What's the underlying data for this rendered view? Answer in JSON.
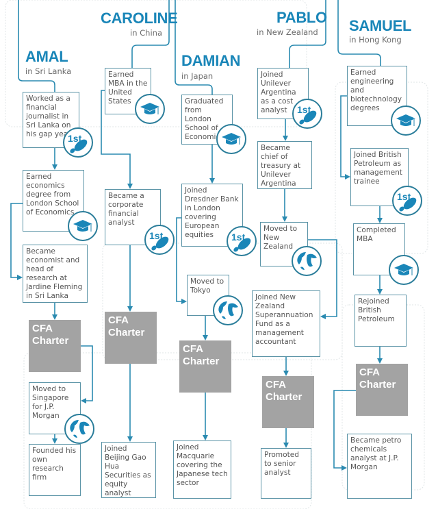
{
  "colors": {
    "accent": "#1a86b8",
    "line": "#2a8ab0",
    "box_border": "#5a93a6",
    "cfa_fill": "#a3a3a3"
  },
  "people": [
    {
      "name": "AMAL",
      "location": "in Sri Lanka",
      "steps": [
        {
          "text": "Worked as a financial journalist in Sri Lanka on his gap year",
          "icon": "first-step-shoe-icon"
        },
        {
          "text": "Earned economics degree from London School of Economics",
          "icon": "graduation-cap-icon"
        },
        {
          "text": "Became economist and head of research at Jardine Fleming in Sri Lanka",
          "icon": ""
        },
        {
          "text": "CFA Charter",
          "icon": "",
          "cfa": true
        },
        {
          "text": "Moved to Singapore for J.P. Morgan",
          "icon": "globe-icon"
        },
        {
          "text": "Founded his own research firm",
          "icon": ""
        }
      ]
    },
    {
      "name": "CAROLINE",
      "location": "in China",
      "steps": [
        {
          "text": "Earned MBA in the United States",
          "icon": "graduation-cap-icon"
        },
        {
          "text": "Became a corporate financial analyst",
          "icon": "first-step-shoe-icon"
        },
        {
          "text": "CFA Charter",
          "icon": "",
          "cfa": true
        },
        {
          "text": "Joined Beijing Gao Hua Securities as equity analyst",
          "icon": ""
        }
      ]
    },
    {
      "name": "DAMIAN",
      "location": "in Japan",
      "steps": [
        {
          "text": "Graduated from London School of Economics",
          "icon": "graduation-cap-icon"
        },
        {
          "text": "Joined Dresdner Bank in London covering European equities",
          "icon": "first-step-shoe-icon"
        },
        {
          "text": "Moved to Tokyo",
          "icon": "globe-icon"
        },
        {
          "text": "CFA Charter",
          "icon": "",
          "cfa": true
        },
        {
          "text": "Joined Macquarie covering the Japanese tech sector",
          "icon": ""
        }
      ]
    },
    {
      "name": "PABLO",
      "location": "in New Zealand",
      "steps": [
        {
          "text": "Joined Unilever Argentina as a cost analyst",
          "icon": "first-step-shoe-icon"
        },
        {
          "text": "Became chief of treasury at Unilever Argentina",
          "icon": ""
        },
        {
          "text": "Moved to New Zealand",
          "icon": "globe-icon"
        },
        {
          "text": "Joined New Zealand Superannuation Fund as a management accountant",
          "icon": ""
        },
        {
          "text": "CFA Charter",
          "icon": "",
          "cfa": true
        },
        {
          "text": "Promoted to senior analyst",
          "icon": ""
        }
      ]
    },
    {
      "name": "SAMUEL",
      "location": "in Hong Kong",
      "steps": [
        {
          "text": "Earned engineering and biotechnology degrees",
          "icon": "graduation-cap-icon"
        },
        {
          "text": "Joined British Petroleum as management trainee",
          "icon": "first-step-shoe-icon"
        },
        {
          "text": "Completed MBA",
          "icon": "graduation-cap-icon"
        },
        {
          "text": "Rejoined British Petroleum",
          "icon": ""
        },
        {
          "text": "CFA Charter",
          "icon": "",
          "cfa": true
        },
        {
          "text": "Became petro chemicals analyst at J.P. Morgan",
          "icon": ""
        }
      ]
    }
  ],
  "icon_labels": {
    "first": "1st"
  }
}
